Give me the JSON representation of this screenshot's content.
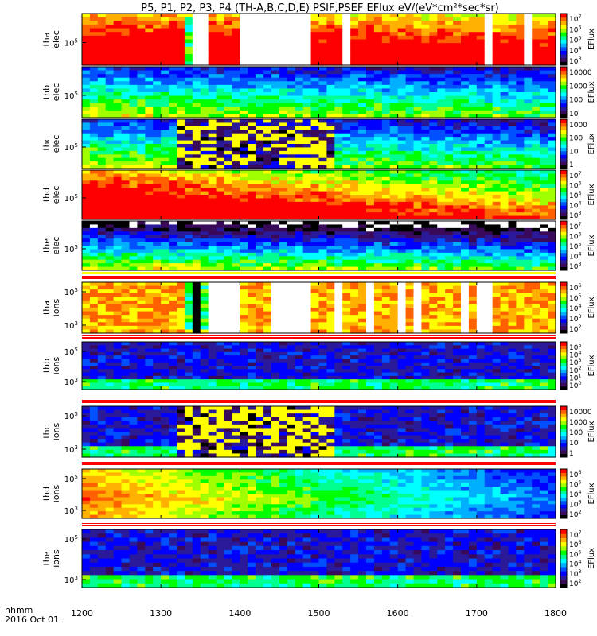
{
  "chart_data": {
    "type": "heatmap",
    "title": "P5, P1, P2, P3, P4 (TH-A,B,C,D,E) PSIF,PSEF EFlux eV/(eV*cm²*sec*sr)",
    "x_label_line1": "hhmm",
    "x_label_line2": "2016 Oct 01",
    "x_range": [
      1200,
      1800
    ],
    "x_ticks": [
      "1200",
      "1300",
      "1400",
      "1500",
      "1600",
      "1700",
      "1800"
    ],
    "colorbar_title": "EFlux",
    "panels": [
      {
        "probe": "tha",
        "species": "elec",
        "y_ticks": [
          {
            "label": "10",
            "sup": "5"
          }
        ],
        "colorbar_ticks": [
          {
            "label": "10",
            "sup": "7"
          },
          {
            "label": "10",
            "sup": "6"
          },
          {
            "label": "10",
            "sup": "5"
          },
          {
            "label": "10",
            "sup": "4"
          },
          {
            "label": "10",
            "sup": "3"
          }
        ],
        "gaps": [
          [
            1340,
            1360
          ],
          [
            1405,
            1490
          ],
          [
            1527,
            1535
          ],
          [
            1618,
            1622
          ],
          [
            1710,
            1720
          ],
          [
            1760,
            1765
          ]
        ],
        "special": [
          [
            1330,
            1355,
            "stripe"
          ]
        ]
      },
      {
        "probe": "thb",
        "species": "elec",
        "y_ticks": [
          {
            "label": "10",
            "sup": "5"
          }
        ],
        "colorbar_ticks": [
          {
            "label": "10000",
            "sup": ""
          },
          {
            "label": "1000",
            "sup": ""
          },
          {
            "label": "100",
            "sup": ""
          },
          {
            "label": "10",
            "sup": ""
          }
        ],
        "gaps": [],
        "special": []
      },
      {
        "probe": "thc",
        "species": "elec",
        "y_ticks": [
          {
            "label": "10",
            "sup": "5"
          }
        ],
        "colorbar_ticks": [
          {
            "label": "1000",
            "sup": ""
          },
          {
            "label": "100",
            "sup": ""
          },
          {
            "label": "10",
            "sup": ""
          },
          {
            "label": "1",
            "sup": ""
          }
        ],
        "gaps": [],
        "special": [
          [
            1320,
            1520,
            "noise"
          ]
        ]
      },
      {
        "probe": "thd",
        "species": "elec",
        "y_ticks": [
          {
            "label": "10",
            "sup": "5"
          }
        ],
        "colorbar_ticks": [
          {
            "label": "10",
            "sup": "7"
          },
          {
            "label": "10",
            "sup": "6"
          },
          {
            "label": "10",
            "sup": "5"
          },
          {
            "label": "10",
            "sup": "4"
          },
          {
            "label": "10",
            "sup": "3"
          }
        ],
        "gaps": [],
        "special": []
      },
      {
        "probe": "the",
        "species": "elec",
        "y_ticks": [
          {
            "label": "10",
            "sup": "5"
          }
        ],
        "colorbar_ticks": [
          {
            "label": "10",
            "sup": "7"
          },
          {
            "label": "10",
            "sup": "6"
          },
          {
            "label": "10",
            "sup": "5"
          },
          {
            "label": "10",
            "sup": "4"
          },
          {
            "label": "10",
            "sup": "3"
          }
        ],
        "gaps": [],
        "special": []
      },
      {
        "probe": "tha",
        "species": "ions",
        "y_ticks": [
          {
            "label": "10",
            "sup": "5"
          },
          {
            "label": "10",
            "sup": "3"
          }
        ],
        "colorbar_ticks": [
          {
            "label": "10",
            "sup": "6"
          },
          {
            "label": "10",
            "sup": "5"
          },
          {
            "label": "10",
            "sup": "4"
          },
          {
            "label": "10",
            "sup": "3"
          },
          {
            "label": "10",
            "sup": "2"
          }
        ],
        "gaps": [
          [
            1360,
            1395
          ],
          [
            1445,
            1490
          ],
          [
            1517,
            1530
          ],
          [
            1558,
            1565
          ],
          [
            1600,
            1610
          ],
          [
            1620,
            1625
          ],
          [
            1680,
            1685
          ],
          [
            1700,
            1715
          ]
        ],
        "special": [
          [
            1330,
            1355,
            "stripe"
          ]
        ]
      },
      {
        "probe": "thb",
        "species": "ions",
        "y_ticks": [
          {
            "label": "10",
            "sup": "5"
          },
          {
            "label": "10",
            "sup": "3"
          }
        ],
        "colorbar_ticks": [
          {
            "label": "10",
            "sup": "5"
          },
          {
            "label": "10",
            "sup": "4"
          },
          {
            "label": "10",
            "sup": "3"
          },
          {
            "label": "10",
            "sup": "2"
          },
          {
            "label": "10",
            "sup": "1"
          },
          {
            "label": "10",
            "sup": "0"
          }
        ],
        "gaps": [],
        "special": []
      },
      {
        "probe": "thc",
        "species": "ions",
        "y_ticks": [
          {
            "label": "10",
            "sup": "5"
          },
          {
            "label": "10",
            "sup": "3"
          }
        ],
        "colorbar_ticks": [
          {
            "label": "10000",
            "sup": ""
          },
          {
            "label": "1000",
            "sup": ""
          },
          {
            "label": "100",
            "sup": ""
          },
          {
            "label": "10",
            "sup": ""
          },
          {
            "label": "1",
            "sup": ""
          }
        ],
        "gaps": [],
        "special": [
          [
            1320,
            1520,
            "noise"
          ]
        ]
      },
      {
        "probe": "thd",
        "species": "ions",
        "y_ticks": [
          {
            "label": "10",
            "sup": "5"
          },
          {
            "label": "10",
            "sup": "3"
          }
        ],
        "colorbar_ticks": [
          {
            "label": "10",
            "sup": "6"
          },
          {
            "label": "10",
            "sup": "5"
          },
          {
            "label": "10",
            "sup": "4"
          },
          {
            "label": "10",
            "sup": "3"
          },
          {
            "label": "10",
            "sup": "2"
          }
        ],
        "gaps": [],
        "special": []
      },
      {
        "probe": "the",
        "species": "ions",
        "y_ticks": [
          {
            "label": "10",
            "sup": "5"
          },
          {
            "label": "10",
            "sup": "3"
          }
        ],
        "colorbar_ticks": [
          {
            "label": "10",
            "sup": "7"
          },
          {
            "label": "10",
            "sup": "6"
          },
          {
            "label": "10",
            "sup": "5"
          },
          {
            "label": "10",
            "sup": "4"
          },
          {
            "label": "10",
            "sup": "3"
          },
          {
            "label": "10",
            "sup": "2"
          }
        ],
        "gaps": [],
        "special": []
      }
    ],
    "colormap": [
      "#000000",
      "#3a0a5a",
      "#2a1a9a",
      "#0000ff",
      "#0050ff",
      "#00b0ff",
      "#00ffff",
      "#00ff90",
      "#00ff00",
      "#a0ff00",
      "#ffff00",
      "#ffb000",
      "#ff6000",
      "#ff0000"
    ]
  }
}
